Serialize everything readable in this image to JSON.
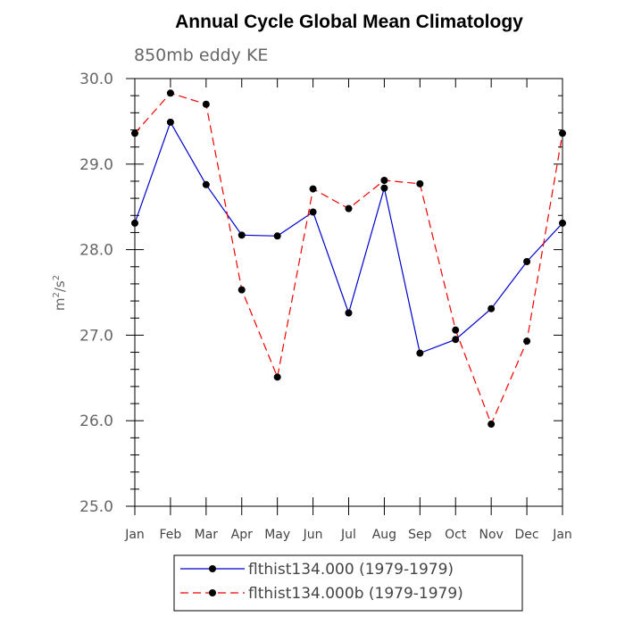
{
  "chart_data": {
    "type": "line",
    "title": "Annual Cycle Global Mean Climatology",
    "subtitle": "850mb eddy KE",
    "ylabel_base": "m",
    "ylabel_mid": "/s",
    "ylabel_exp": "2",
    "categories": [
      "Jan",
      "Feb",
      "Mar",
      "Apr",
      "May",
      "Jun",
      "Jul",
      "Aug",
      "Sep",
      "Oct",
      "Nov",
      "Dec",
      "Jan"
    ],
    "ylim": [
      25.0,
      30.0
    ],
    "yticks": [
      "25.0",
      "26.0",
      "27.0",
      "28.0",
      "29.0",
      "30.0"
    ],
    "series": [
      {
        "name": "flthist134.000 (1979-1979)",
        "color": "#0000cc",
        "dash": "solid",
        "values": [
          28.31,
          29.49,
          28.76,
          28.17,
          28.16,
          28.44,
          27.26,
          28.72,
          26.79,
          26.95,
          27.31,
          27.86,
          28.31
        ]
      },
      {
        "name": "flthist134.000b (1979-1979)",
        "color": "#ee0000",
        "dash": "dashed",
        "values": [
          29.36,
          29.83,
          29.7,
          27.53,
          26.51,
          28.71,
          28.48,
          28.81,
          28.77,
          27.06,
          25.96,
          26.93,
          29.36
        ]
      }
    ],
    "grid": false,
    "legend_position": "bottom"
  }
}
